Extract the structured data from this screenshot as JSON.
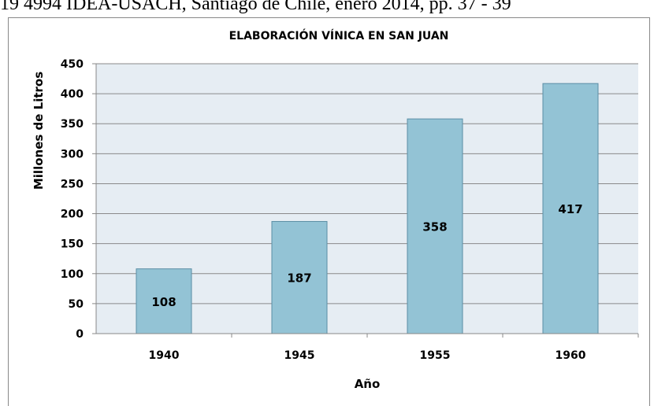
{
  "header_text": "19 4994 IDEA-USACH, Santiago de Chile, enero 2014, pp. 37 - 39",
  "chart_data": {
    "type": "bar",
    "title": "ELABORACIÓN VÍNICA EN SAN JUAN",
    "x_label": "Año",
    "y_label": "Millones de Litros",
    "categories": [
      "1940",
      "1945",
      "1955",
      "1960"
    ],
    "values": [
      108,
      187,
      358,
      417
    ],
    "color": "#93c3d5",
    "ylim": [
      0,
      450
    ],
    "yticks": [
      0,
      50,
      100,
      150,
      200,
      250,
      300,
      350,
      400,
      450
    ],
    "grid": true
  }
}
